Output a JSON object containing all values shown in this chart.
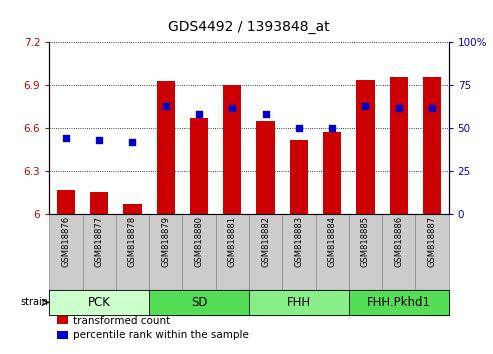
{
  "title": "GDS4492 / 1393848_at",
  "samples": [
    "GSM818876",
    "GSM818877",
    "GSM818878",
    "GSM818879",
    "GSM818880",
    "GSM818881",
    "GSM818882",
    "GSM818883",
    "GSM818884",
    "GSM818885",
    "GSM818886",
    "GSM818887"
  ],
  "bar_values": [
    6.17,
    6.15,
    6.07,
    6.93,
    6.67,
    6.9,
    6.65,
    6.52,
    6.57,
    6.94,
    6.96,
    6.96
  ],
  "percentile_values": [
    44,
    43,
    42,
    63,
    58,
    62,
    58,
    50,
    50,
    63,
    62,
    62
  ],
  "bar_color": "#cc0000",
  "percentile_color": "#0000cc",
  "ylim_left": [
    6.0,
    7.2
  ],
  "ylim_right": [
    0,
    100
  ],
  "yticks_left": [
    6.0,
    6.3,
    6.6,
    6.9,
    7.2
  ],
  "yticks_right": [
    0,
    25,
    50,
    75,
    100
  ],
  "groups": [
    {
      "label": "PCK",
      "start": 0,
      "end": 3,
      "color": "#ccffcc"
    },
    {
      "label": "SD",
      "start": 3,
      "end": 6,
      "color": "#55dd55"
    },
    {
      "label": "FHH",
      "start": 6,
      "end": 9,
      "color": "#88ee88"
    },
    {
      "label": "FHH.Pkhd1",
      "start": 9,
      "end": 12,
      "color": "#55dd55"
    }
  ],
  "strain_label": "strain",
  "legend_items": [
    {
      "label": "transformed count",
      "color": "#cc0000"
    },
    {
      "label": "percentile rank within the sample",
      "color": "#0000cc"
    }
  ],
  "bar_bottom": 6.0,
  "title_fontsize": 10,
  "tick_fontsize": 7.5,
  "axis_label_color_left": "#cc0000",
  "axis_label_color_right": "#0000cc",
  "group_label_fontsize": 8.5,
  "legend_fontsize": 7.5,
  "sample_tick_fontsize": 6,
  "xtick_bg_color": "#cccccc",
  "xtick_border_color": "#888888"
}
